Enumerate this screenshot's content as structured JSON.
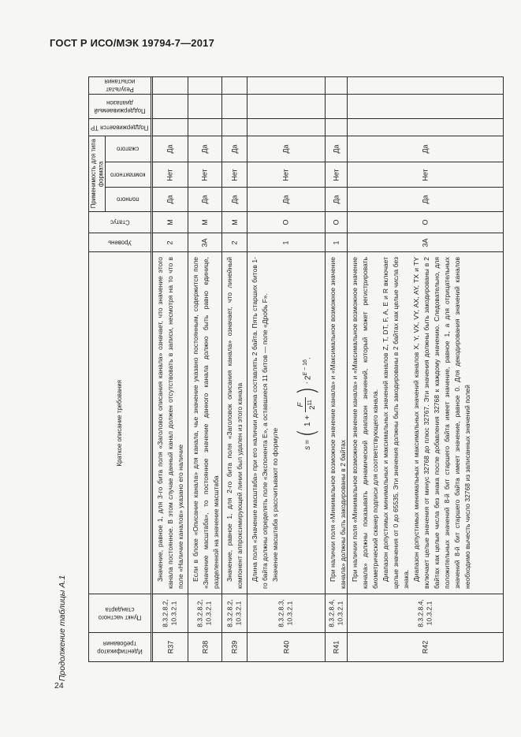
{
  "page": {
    "header_title": "ГОСТ Р ИСО/МЭК 19794-7—2017",
    "continuation_caption": "Продолжение таблицы А.1",
    "page_number": "24"
  },
  "table": {
    "row_labels": {
      "result": "Результат испытания",
      "supported_range": "Поддерживаемый диапазон",
      "supported_tr": "Поддерживается ТР",
      "applicability_group": "Применимость для типа формата",
      "applicability_compressed": "сжатого",
      "applicability_compact": "компактного",
      "applicability_full": "полного",
      "status": "Статус",
      "level": "Уровень",
      "short_description": "Краткое описание требования",
      "standard_clause": "Пункт частного стандарта",
      "requirement_id": "Идентификатор требования"
    },
    "requirements": [
      {
        "id": "R37",
        "clause": [
          "8.3.2.8.2,",
          "10.3.2.1"
        ],
        "level": "2",
        "status": "М",
        "full": "Да",
        "compact": "Нет",
        "compressed": "Да",
        "description": [
          "Значение, равное 1, для 3-го бита поля «Заголовок описания канала» означает, что значение этого канала постоянное. В этом случае данный канал должен отсутствовать в записи, несмотря на то что в поле «Наличие каналов» указано его наличие"
        ]
      },
      {
        "id": "R38",
        "clause": [
          "8.3.2.8.2,",
          "10.3.2.1"
        ],
        "level": "3А",
        "status": "М",
        "full": "Да",
        "compact": "Нет",
        "compressed": "Да",
        "description": [
          "Если в блоке «Описание канала» для канала, чье значение указано постоянным, содержится поле «Значение масштаба», то постоянное значение данного канала должно быть равно единице, разделенной на значение масштаба"
        ]
      },
      {
        "id": "R39",
        "clause": [
          "8.3.2.8.2,",
          "10.3.2.1"
        ],
        "level": "2",
        "status": "М",
        "full": "Да",
        "compact": "Нет",
        "compressed": "Да",
        "description": [
          "Значение, равное 1, для 2-го бита поля «Заголовок описания канала» означает, что линейный компонент аппроксимирующей линии был удален из этого канала"
        ]
      },
      {
        "id": "R40",
        "clause": [
          "8.3.2.8.3,",
          "10.3.2.1"
        ],
        "level": "1",
        "status": "О",
        "full": "Да",
        "compact": "Нет",
        "compressed": "Да",
        "description": [
          "Длина поля «Значение масштаба» при его наличии должна составлять 2 байта. Пять старших битов 1-го байта должны определять поле «Экспонента Е», а оставшиеся 11 битов — поле «Дробь F».",
          "Значение масштаба s рассчитывают по формуле"
        ]
      },
      {
        "id": "R41",
        "clause": [
          "8.3.2.8.4,",
          "10.3.2.1"
        ],
        "level": "1",
        "status": "О",
        "full": "Да",
        "compact": "Нет",
        "compressed": "Да",
        "description": [
          "При наличии поля «Минимальное возможное значение канала» и «Максимальное возможное значение канала» должны быть закодированы в 2 байтах"
        ]
      },
      {
        "id": "R42",
        "clause": [
          "8.3.2.8.4,",
          "10.3.2.1"
        ],
        "level": "3А",
        "status": "О",
        "full": "Да",
        "compact": "Нет",
        "compressed": "Да",
        "description": [
          "При наличии поля «Минимальное возможное значение канала» и «Максимальное возможное значение канала» должны показывать динамический диапазон значений, который может регистрировать биометрический сканер подписи для соответствующего канала.",
          "Диапазон допустимых минимальных и максимальных значений каналов Z, T, DT, F, A, Е и R включает целые значения от 0 до 65535. Эти значения должны быть закодированы в 2 байтах как целые числа без знака.",
          "Диапазон допустимых минимальных и максимальных значений каналов X, Y, VX, VY, AX, AY, TX и TY включает целые значения от минус 32768 до плюс 32767. Эти значения должны быть закодированы в 2 байтах как целые числа без знака после добавления 32768 к каждому значению. Следовательно, для положительных значений 8-й бит старшего байта имеет значение, равное 1, а для отрицательных значений 8-й бит старшего байта имеет значение, равное 0. Для декодирования значений каналов необходимо вычесть число 32768 из записанных значений полей"
        ]
      }
    ],
    "formula": {
      "lhs": "s",
      "eq": "=",
      "open": "(",
      "pre": "1 +",
      "num": "F",
      "den_base": "2",
      "den_exp": "11",
      "close": ")",
      "times": "⋅",
      "base": "2",
      "exp_var": "E",
      "exp_tail": " − 16",
      "period": "."
    }
  }
}
